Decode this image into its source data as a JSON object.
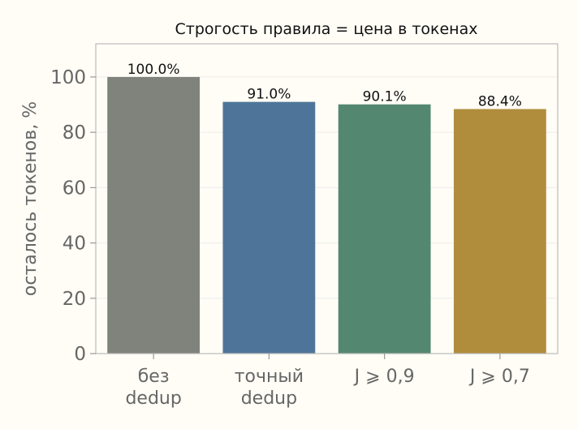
{
  "chart_data": {
    "type": "bar",
    "title": "Строгость правила = цена в токенах",
    "xlabel": "",
    "ylabel": "осталось токенов, %",
    "categories": [
      [
        "без",
        "dedup"
      ],
      [
        "точный",
        "dedup"
      ],
      [
        "J ⩾ 0,9"
      ],
      [
        "J ⩾ 0,7"
      ]
    ],
    "values": [
      100.0,
      91.0,
      90.1,
      88.4
    ],
    "data_labels": [
      "100.0%",
      "91.0%",
      "90.1%",
      "88.4%"
    ],
    "colors": [
      "#7f837c",
      "#4e7599",
      "#548770",
      "#b08c3d"
    ],
    "ylim": [
      0,
      112
    ],
    "yticks": [
      0,
      20,
      40,
      60,
      80,
      100
    ],
    "grid": true,
    "legend": "none"
  }
}
